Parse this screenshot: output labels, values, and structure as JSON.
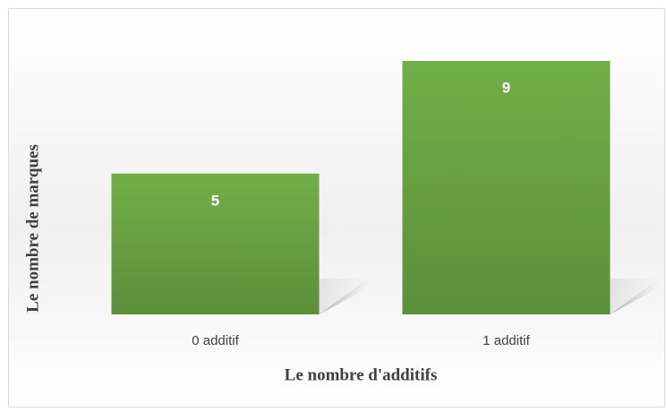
{
  "chart_data": {
    "type": "bar",
    "categories": [
      "0 additif",
      "1 additif"
    ],
    "values": [
      5,
      9
    ],
    "color": "#70ad47",
    "xlabel": "Le nombre d'additifs",
    "ylabel": "Le nombre de marques"
  }
}
